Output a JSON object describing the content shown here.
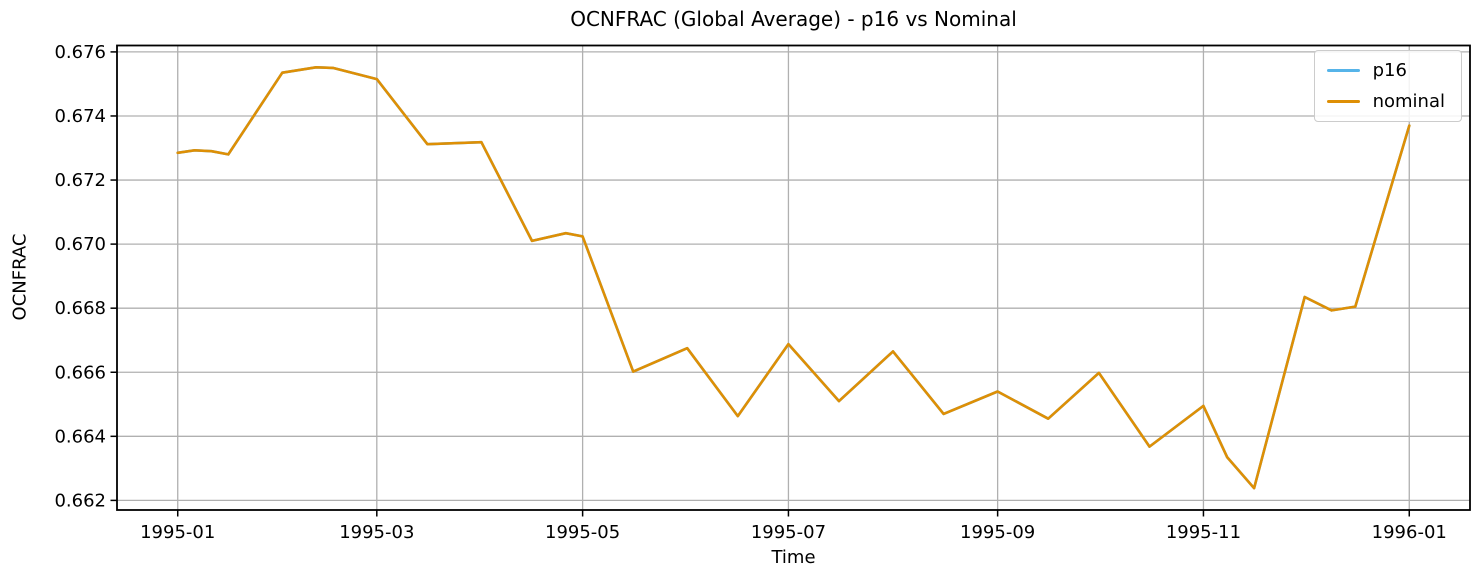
{
  "chart_data": {
    "type": "line",
    "title": "OCNFRAC (Global Average) - p16 vs Nominal",
    "xlabel": "Time",
    "ylabel": "OCNFRAC",
    "grid": true,
    "grid_color": "#b0b0b0",
    "spine_color": "#000000",
    "background": "#ffffff",
    "legend_position": "upper right",
    "xlim": [
      "1994-12-14",
      "1996-01-19"
    ],
    "ylim": [
      0.6617,
      0.6762
    ],
    "x_ticks": [
      {
        "date": "1995-01-01",
        "label": "1995-01"
      },
      {
        "date": "1995-03-01",
        "label": "1995-03"
      },
      {
        "date": "1995-05-01",
        "label": "1995-05"
      },
      {
        "date": "1995-07-01",
        "label": "1995-07"
      },
      {
        "date": "1995-09-01",
        "label": "1995-09"
      },
      {
        "date": "1995-11-01",
        "label": "1995-11"
      },
      {
        "date": "1996-01-01",
        "label": "1996-01"
      }
    ],
    "y_ticks": [
      0.662,
      0.664,
      0.666,
      0.668,
      0.67,
      0.672,
      0.674,
      0.676
    ],
    "y_tick_decimals": 3,
    "x": [
      "1995-01-01",
      "1995-01-06",
      "1995-01-11",
      "1995-01-16",
      "1995-02-01",
      "1995-02-11",
      "1995-02-16",
      "1995-03-01",
      "1995-03-16",
      "1995-04-01",
      "1995-04-16",
      "1995-04-26",
      "1995-05-01",
      "1995-05-16",
      "1995-06-01",
      "1995-06-16",
      "1995-07-01",
      "1995-07-16",
      "1995-08-01",
      "1995-08-16",
      "1995-09-01",
      "1995-09-16",
      "1995-10-01",
      "1995-10-16",
      "1995-11-01",
      "1995-11-08",
      "1995-11-16",
      "1995-12-01",
      "1995-12-09",
      "1995-12-16",
      "1996-01-01"
    ],
    "series": [
      {
        "name": "p16",
        "color": "#56B4E9",
        "values": [
          0.67285,
          0.67293,
          0.6729,
          0.6728,
          0.67535,
          0.67552,
          0.6755,
          0.67515,
          0.67312,
          0.67318,
          0.6701,
          0.67034,
          0.67024,
          0.66602,
          0.66675,
          0.66463,
          0.66688,
          0.6651,
          0.66665,
          0.6647,
          0.6654,
          0.66455,
          0.66598,
          0.66368,
          0.66495,
          0.66335,
          0.66238,
          0.66835,
          0.66793,
          0.66805,
          0.6737
        ]
      },
      {
        "name": "nominal",
        "color": "#DE8F05",
        "values": [
          0.67285,
          0.67293,
          0.6729,
          0.6728,
          0.67535,
          0.67552,
          0.6755,
          0.67515,
          0.67312,
          0.67318,
          0.6701,
          0.67034,
          0.67024,
          0.66602,
          0.66675,
          0.66463,
          0.66688,
          0.6651,
          0.66665,
          0.6647,
          0.6654,
          0.66455,
          0.66598,
          0.66368,
          0.66495,
          0.66335,
          0.66238,
          0.66835,
          0.66793,
          0.66805,
          0.6737
        ]
      }
    ],
    "series_overlap": true
  }
}
